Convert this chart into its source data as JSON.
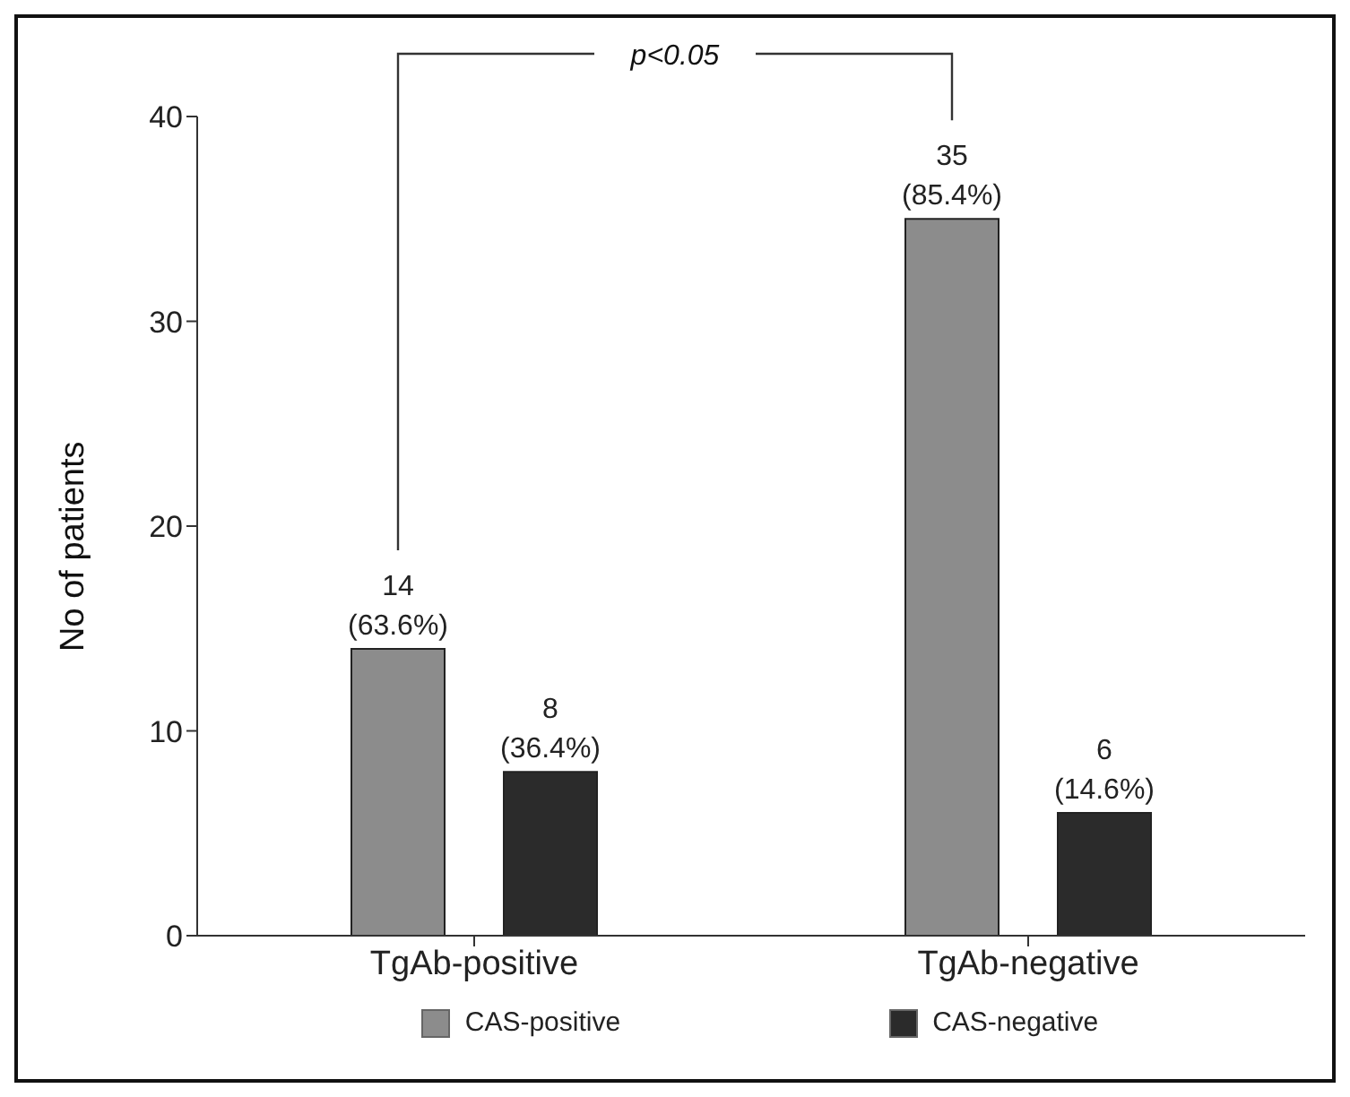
{
  "chart_data": {
    "type": "bar",
    "ylabel": "No of patients",
    "categories": [
      "TgAb-positive",
      "TgAb-negative"
    ],
    "series": [
      {
        "name": "CAS-positive",
        "color": "#8c8c8c",
        "values": [
          14,
          35
        ],
        "value_labels": [
          "14 (63.6%)",
          "35 (85.4%)"
        ]
      },
      {
        "name": "CAS-negative",
        "color": "#2b2b2b",
        "values": [
          8,
          6
        ],
        "value_labels": [
          "8 (36.4%)",
          "6 (14.6%)"
        ]
      }
    ],
    "ylim": [
      0,
      40
    ],
    "yticks": [
      0,
      10,
      20,
      30,
      40
    ],
    "grid": false,
    "legend": "bottom",
    "annotations": [
      "p<0.05"
    ]
  }
}
